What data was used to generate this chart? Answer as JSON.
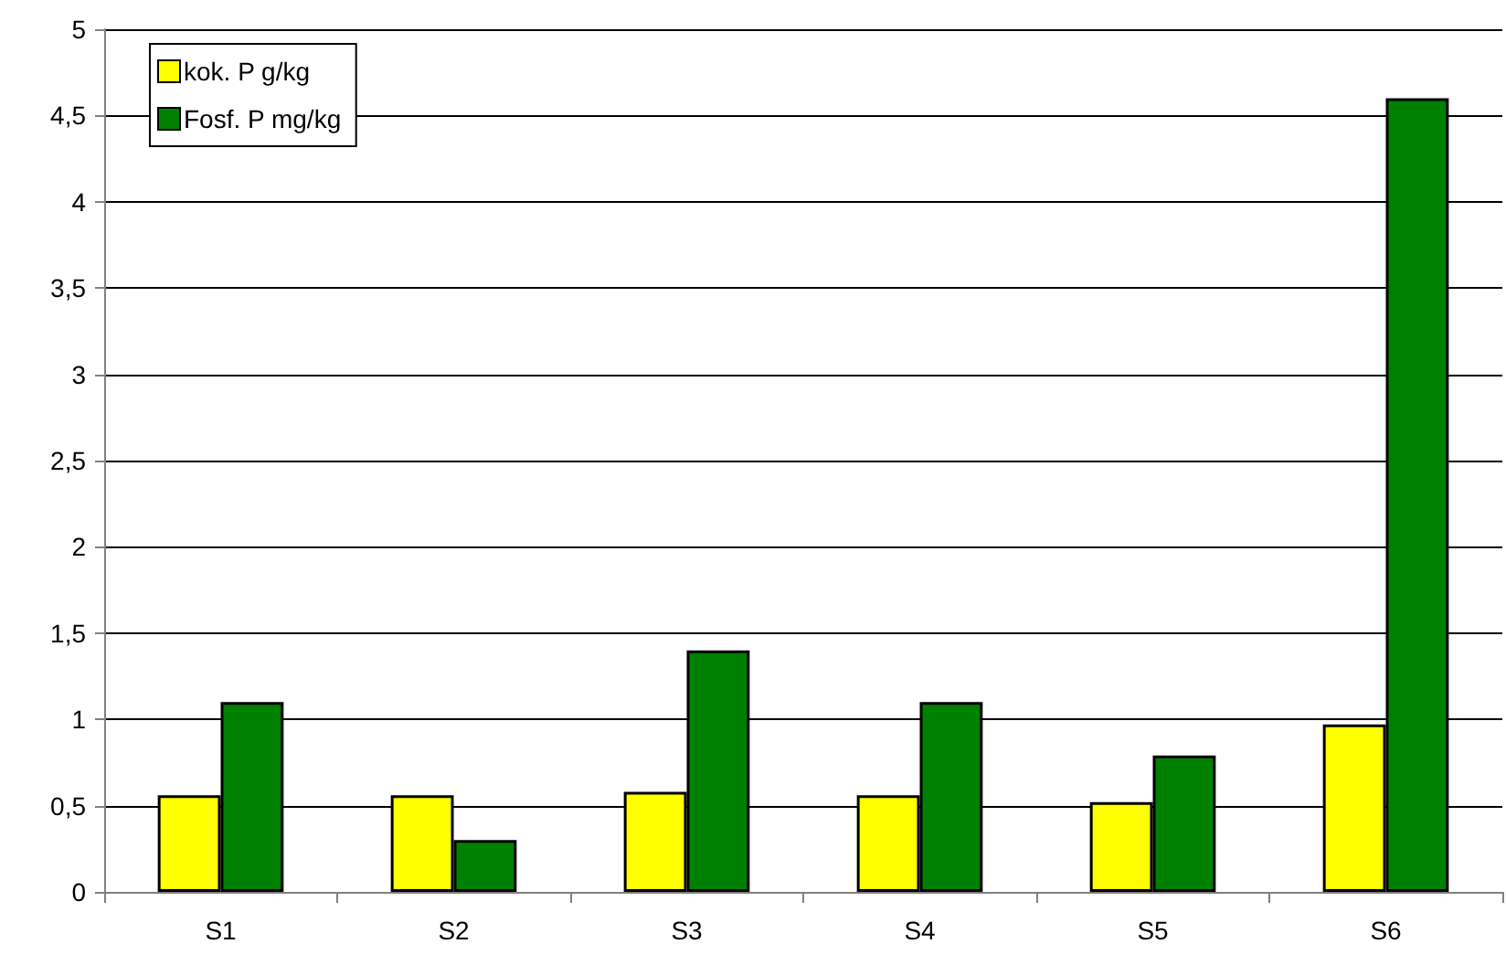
{
  "chart_data": {
    "type": "bar",
    "categories": [
      "S1",
      "S2",
      "S3",
      "S4",
      "S5",
      "S6"
    ],
    "series": [
      {
        "name": "kok. P g/kg",
        "color": "#ffff00",
        "values": [
          0.56,
          0.56,
          0.58,
          0.56,
          0.52,
          0.97
        ]
      },
      {
        "name": "Fosf. P mg/kg",
        "color": "#008000",
        "values": [
          1.1,
          0.3,
          1.4,
          1.1,
          0.79,
          4.6
        ]
      }
    ],
    "ylim": [
      0,
      5
    ],
    "yticks": [
      {
        "value": 0,
        "label": "0"
      },
      {
        "value": 0.5,
        "label": "0,5"
      },
      {
        "value": 1,
        "label": "1"
      },
      {
        "value": 1.5,
        "label": "1,5"
      },
      {
        "value": 2,
        "label": "2"
      },
      {
        "value": 2.5,
        "label": "2,5"
      },
      {
        "value": 3,
        "label": "3"
      },
      {
        "value": 3.5,
        "label": "3,5"
      },
      {
        "value": 4,
        "label": "4"
      },
      {
        "value": 4.5,
        "label": "4,5"
      },
      {
        "value": 5,
        "label": "5"
      }
    ],
    "grid": "y",
    "legend": "top left"
  }
}
